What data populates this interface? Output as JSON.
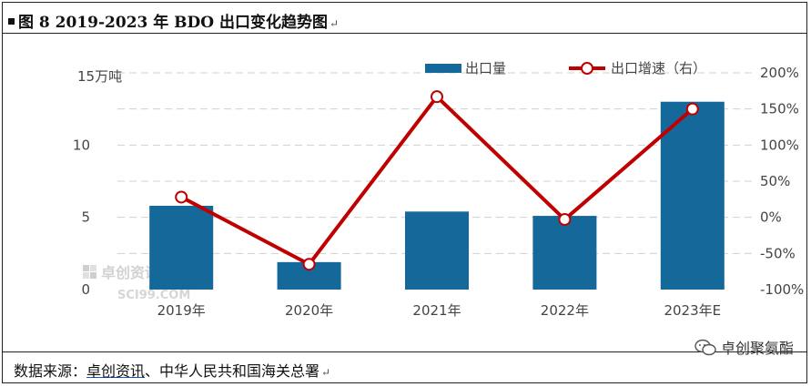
{
  "title": "图 8 2019-2023 年 BDO 出口变化趋势图",
  "source": {
    "prefix": "数据来源：",
    "org": "卓创资讯",
    "rest": "、中华人民共和国海关总署"
  },
  "brand": {
    "name": "卓创聚氨酯",
    "icon": "wechat-icon"
  },
  "watermark": {
    "name": "卓创资讯",
    "site": "SCI99.COM"
  },
  "colors": {
    "bar": "#15689a",
    "line": "#c00000",
    "grid": "#d0d0d0"
  },
  "chart_data": {
    "type": "bar+line",
    "categories": [
      "2019年",
      "2020年",
      "2021年",
      "2022年",
      "2023年E"
    ],
    "series": [
      {
        "name": "出口量",
        "type": "bar",
        "axis": "left",
        "values": [
          5.8,
          1.9,
          5.4,
          5.1,
          13.0
        ]
      },
      {
        "name": "出口增速（右）",
        "type": "line",
        "axis": "right",
        "values": [
          28,
          -65,
          167,
          -3,
          150
        ]
      }
    ],
    "left_axis": {
      "label": "15万吨",
      "ticks": [
        "0",
        "5",
        "10"
      ],
      "range": [
        0,
        15
      ]
    },
    "right_axis": {
      "ticks": [
        "-100%",
        "-50%",
        "0%",
        "50%",
        "100%",
        "150%",
        "200%"
      ],
      "range": [
        -100,
        200
      ]
    },
    "legend_position": "top-right",
    "grid": "horizontal dashed"
  }
}
